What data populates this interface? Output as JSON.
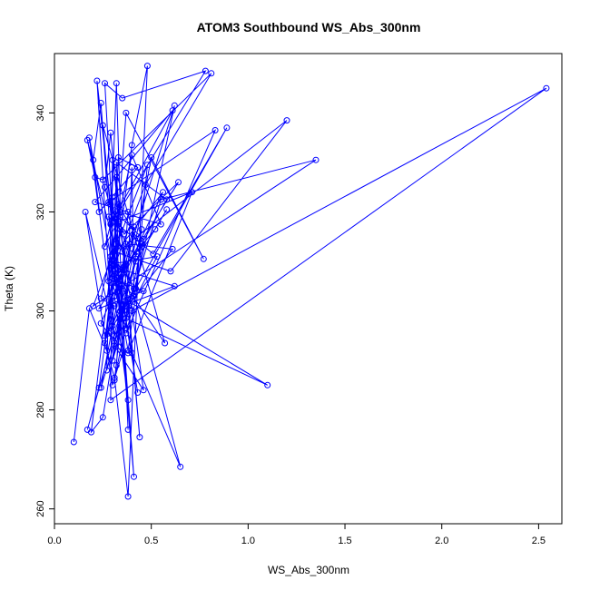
{
  "chart_data": {
    "type": "scatter",
    "title": "ATOM3 Southbound WS_Abs_300nm",
    "xlabel": "WS_Abs_300nm",
    "ylabel": "Theta (K)",
    "xlim": [
      0,
      2.62
    ],
    "ylim": [
      257,
      352
    ],
    "xticks": [
      "0.0",
      "0.5",
      "1.0",
      "1.5",
      "2.0",
      "2.5"
    ],
    "yticks": [
      "260",
      "280",
      "300",
      "320",
      "340"
    ],
    "connected": true,
    "marker": "open-circle",
    "color": "#0000ff",
    "series": [
      {
        "x": [
          0.1,
          0.18,
          0.27,
          0.31,
          0.38,
          0.48,
          0.4,
          0.29,
          0.22,
          0.3,
          0.26,
          0.35,
          0.78,
          0.34,
          0.32,
          0.28,
          0.47,
          0.81,
          0.25,
          0.21,
          0.17,
          0.39,
          0.53,
          0.3,
          0.24,
          0.2,
          0.31,
          0.41,
          0.62,
          0.36,
          0.3,
          0.33,
          0.43,
          0.23,
          0.18,
          0.34,
          0.3,
          0.29,
          2.54,
          0.4,
          0.37,
          0.83,
          0.28,
          0.37,
          0.33,
          0.32,
          0.58,
          0.45,
          0.31,
          0.35,
          0.5,
          0.77,
          0.37,
          0.32,
          0.43,
          0.31,
          0.38,
          0.46,
          0.34,
          0.26,
          0.29,
          0.61,
          0.21,
          0.38,
          0.32,
          0.36,
          1.2,
          0.6,
          0.31,
          0.43,
          0.28,
          0.51,
          0.89,
          0.34,
          0.38,
          0.31,
          0.56,
          0.3,
          0.42,
          0.48,
          0.2,
          1.35,
          0.55,
          0.3,
          0.45,
          0.24,
          0.35,
          0.3,
          0.16,
          0.3,
          0.39,
          0.61,
          0.26,
          0.31,
          0.41,
          0.25,
          0.19,
          0.33,
          0.45,
          0.29,
          0.41,
          0.4,
          0.37,
          0.3,
          0.28,
          0.38,
          0.71,
          0.33,
          0.26,
          0.31,
          0.24,
          0.4,
          0.55,
          0.34,
          0.3,
          0.27,
          0.42,
          0.58,
          0.52,
          0.31,
          0.46,
          0.23,
          0.64,
          0.36,
          0.29,
          0.31,
          0.37,
          1.1,
          0.38,
          0.29,
          0.31,
          0.46,
          0.34,
          0.23,
          0.17,
          0.35,
          0.62,
          0.3,
          0.57,
          0.25,
          0.41,
          0.31,
          0.32,
          0.44,
          0.38,
          0.24,
          0.34,
          0.4,
          0.65,
          0.26,
          0.29,
          0.33,
          0.38
        ],
        "y": [
          273.5,
          300.5,
          292.0,
          286.5,
          262.5,
          349.5,
          333.5,
          301.0,
          346.5,
          318.0,
          346.0,
          343.0,
          348.5,
          320.5,
          346.0,
          306.0,
          325.5,
          348.0,
          326.5,
          327.0,
          334.5,
          300.5,
          311.0,
          309.5,
          342.0,
          330.5,
          295.0,
          303.0,
          341.5,
          309.0,
          306.5,
          331.0,
          329.0,
          320.0,
          335.0,
          300.0,
          323.0,
          282.0,
          345.0,
          300.0,
          295.5,
          336.5,
          322.0,
          313.5,
          304.0,
          330.0,
          322.5,
          313.5,
          286.0,
          300.0,
          331.0,
          310.5,
          340.0,
          313.5,
          311.5,
          307.5,
          292.0,
          314.5,
          319.0,
          313.0,
          317.5,
          340.5,
          322.0,
          320.0,
          289.0,
          313.0,
          338.5,
          308.0,
          312.0,
          283.5,
          319.0,
          311.5,
          337.0,
          299.0,
          282.0,
          303.0,
          324.0,
          311.0,
          304.5,
          329.5,
          301.0,
          330.5,
          322.5,
          290.0,
          316.5,
          297.5,
          291.5,
          285.0,
          320.0,
          297.0,
          313.5,
          312.5,
          295.0,
          303.0,
          317.0,
          278.5,
          275.5,
          321.5,
          313.0,
          296.0,
          304.5,
          329.0,
          296.5,
          305.5,
          295.5,
          291.5,
          324.0,
          318.0,
          293.5,
          301.0,
          302.5,
          331.5,
          317.5,
          320.0,
          330.5,
          288.0,
          310.0,
          320.5,
          316.5,
          306.5,
          304.0,
          300.5,
          326.0,
          315.5,
          321.5,
          308.5,
          298.5,
          285.0,
          302.0,
          311.0,
          293.0,
          284.0,
          316.5,
          284.5,
          276.0,
          301.0,
          305.0,
          309.0,
          293.5,
          337.5,
          266.5,
          319.5,
          327.0,
          274.5,
          302.5,
          284.5,
          305.0,
          291.5,
          268.5,
          325.0,
          336.0,
          319.5,
          276.0
        ]
      }
    ]
  }
}
